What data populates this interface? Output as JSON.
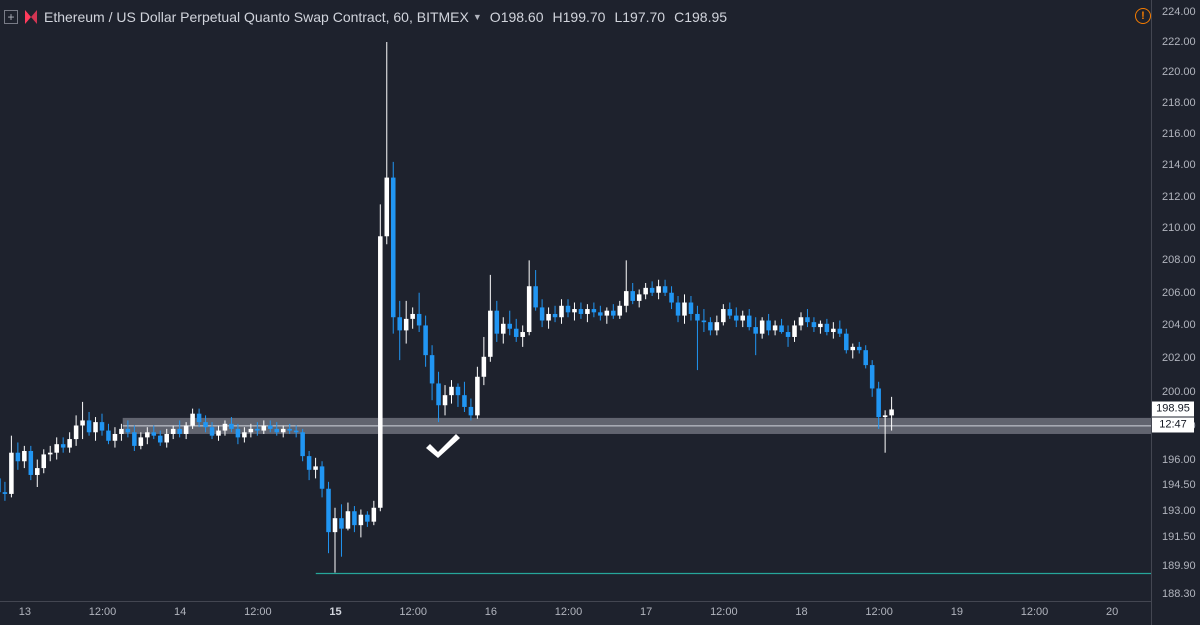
{
  "legend": {
    "symbol": "Ethereum / US Dollar Perpetual Quanto Swap Contract, 60, BITMEX",
    "add_icon": "plus-square-icon",
    "logo_icon": "bitmex-logo-icon",
    "open_key": "O",
    "open": "198.60",
    "high_key": "H",
    "high": "199.70",
    "low_key": "L",
    "low": "197.70",
    "close_key": "C",
    "close": "198.95"
  },
  "alert_icon": "!",
  "last_price": "198.95",
  "countdown": "12:47",
  "checkmark": "check-icon",
  "colors": {
    "background": "#1e222d",
    "up": "#ffffff",
    "down": "#2196f3",
    "support_zone": "#787b86",
    "low_line": "#26a69a",
    "alert": "#f57c00"
  },
  "chart_data": {
    "type": "candlestick",
    "title": "",
    "xlabel": "",
    "ylabel": "",
    "y_scale": "log",
    "ylim": [
      187.9,
      224.8
    ],
    "y_ticks": [
      "224.00",
      "222.00",
      "220.00",
      "218.00",
      "216.00",
      "214.00",
      "212.00",
      "210.00",
      "208.00",
      "206.00",
      "204.00",
      "202.00",
      "200.00",
      "198.00",
      "196.00",
      "194.50",
      "193.00",
      "191.50",
      "189.90",
      "188.30"
    ],
    "x_ticks": [
      {
        "label": "13",
        "day": 13.0,
        "bold": false
      },
      {
        "label": "12:00",
        "day": 13.5,
        "bold": false
      },
      {
        "label": "14",
        "day": 14.0,
        "bold": false
      },
      {
        "label": "12:00",
        "day": 14.5,
        "bold": false
      },
      {
        "label": "15",
        "day": 15.0,
        "bold": true
      },
      {
        "label": "12:00",
        "day": 15.5,
        "bold": false
      },
      {
        "label": "16",
        "day": 16.0,
        "bold": false
      },
      {
        "label": "12:00",
        "day": 16.5,
        "bold": false
      },
      {
        "label": "17",
        "day": 17.0,
        "bold": false
      },
      {
        "label": "12:00",
        "day": 17.5,
        "bold": false
      },
      {
        "label": "18",
        "day": 18.0,
        "bold": false
      },
      {
        "label": "12:00",
        "day": 18.5,
        "bold": false
      },
      {
        "label": "19",
        "day": 19.0,
        "bold": false
      },
      {
        "label": "12:00",
        "day": 19.5,
        "bold": false
      },
      {
        "label": "20",
        "day": 20.0,
        "bold": false
      }
    ],
    "xlim_days": [
      12.84,
      20.25
    ],
    "support_zone": [
      197.5,
      198.45
    ],
    "low_line": 189.45,
    "low_line_start_day": 14.873,
    "candles": [
      [
        195.0,
        195.3,
        193.6,
        194.2
      ],
      [
        194.2,
        196.0,
        193.8,
        195.6
      ],
      [
        195.6,
        195.9,
        194.8,
        195.2
      ],
      [
        195.2,
        195.6,
        193.7,
        194.3
      ],
      [
        194.3,
        194.6,
        192.0,
        193.2
      ],
      [
        193.2,
        195.4,
        193.0,
        194.9
      ],
      [
        194.9,
        195.1,
        193.9,
        194.1
      ],
      [
        194.1,
        194.7,
        193.6,
        194.0
      ],
      [
        194.0,
        197.4,
        193.8,
        196.4
      ],
      [
        196.4,
        197.0,
        195.4,
        195.9
      ],
      [
        195.9,
        196.8,
        195.5,
        196.5
      ],
      [
        196.5,
        196.8,
        194.8,
        195.1
      ],
      [
        195.1,
        196.0,
        194.4,
        195.5
      ],
      [
        195.5,
        196.6,
        195.2,
        196.3
      ],
      [
        196.3,
        196.8,
        195.9,
        196.4
      ],
      [
        196.4,
        197.3,
        196.0,
        196.9
      ],
      [
        196.9,
        197.3,
        196.4,
        196.7
      ],
      [
        196.7,
        197.6,
        196.4,
        197.2
      ],
      [
        197.2,
        198.6,
        196.8,
        198.0
      ],
      [
        198.0,
        199.4,
        197.2,
        198.3
      ],
      [
        198.3,
        198.8,
        197.4,
        197.6
      ],
      [
        197.6,
        198.5,
        197.1,
        198.2
      ],
      [
        198.2,
        198.7,
        197.4,
        197.7
      ],
      [
        197.7,
        198.1,
        196.9,
        197.1
      ],
      [
        197.1,
        197.9,
        196.7,
        197.5
      ],
      [
        197.5,
        198.1,
        197.1,
        197.8
      ],
      [
        197.8,
        198.3,
        197.3,
        197.6
      ],
      [
        197.6,
        198.0,
        196.5,
        196.8
      ],
      [
        196.8,
        197.6,
        196.6,
        197.3
      ],
      [
        197.3,
        197.9,
        196.9,
        197.6
      ],
      [
        197.6,
        198.0,
        197.2,
        197.4
      ],
      [
        197.4,
        197.7,
        196.8,
        197.0
      ],
      [
        197.0,
        197.8,
        196.7,
        197.5
      ],
      [
        197.5,
        198.0,
        197.2,
        197.8
      ],
      [
        197.8,
        198.3,
        197.3,
        197.5
      ],
      [
        197.5,
        198.2,
        197.2,
        198.0
      ],
      [
        198.0,
        199.0,
        197.8,
        198.7
      ],
      [
        198.7,
        199.0,
        197.9,
        198.2
      ],
      [
        198.2,
        198.6,
        197.6,
        197.9
      ],
      [
        197.9,
        198.2,
        197.2,
        197.4
      ],
      [
        197.4,
        198.0,
        197.1,
        197.7
      ],
      [
        197.7,
        198.3,
        197.4,
        198.1
      ],
      [
        198.1,
        198.5,
        197.6,
        197.8
      ],
      [
        197.8,
        198.1,
        196.9,
        197.3
      ],
      [
        197.3,
        197.9,
        197.0,
        197.6
      ],
      [
        197.6,
        198.1,
        197.3,
        197.8
      ],
      [
        197.8,
        198.2,
        197.4,
        197.7
      ],
      [
        197.7,
        198.3,
        197.5,
        198.0
      ],
      [
        198.0,
        198.3,
        197.6,
        197.8
      ],
      [
        197.8,
        198.2,
        197.4,
        197.6
      ],
      [
        197.6,
        198.0,
        197.3,
        197.8
      ],
      [
        197.8,
        198.1,
        197.5,
        197.7
      ],
      [
        197.7,
        198.0,
        197.3,
        197.6
      ],
      [
        197.6,
        197.8,
        195.9,
        196.2
      ],
      [
        196.2,
        196.5,
        194.8,
        195.4
      ],
      [
        195.4,
        196.1,
        194.9,
        195.6
      ],
      [
        195.6,
        195.9,
        193.8,
        194.3
      ],
      [
        194.3,
        194.7,
        190.6,
        191.8
      ],
      [
        191.8,
        193.2,
        189.5,
        192.6
      ],
      [
        192.6,
        193.4,
        190.4,
        192.0
      ],
      [
        192.0,
        193.5,
        191.9,
        193.0
      ],
      [
        193.0,
        193.3,
        191.8,
        192.2
      ],
      [
        192.2,
        193.1,
        191.5,
        192.8
      ],
      [
        192.8,
        193.0,
        192.1,
        192.4
      ],
      [
        192.4,
        193.6,
        192.2,
        193.2
      ],
      [
        193.2,
        211.5,
        193.0,
        209.5
      ],
      [
        209.5,
        222.0,
        209.0,
        213.2
      ],
      [
        213.2,
        214.2,
        203.5,
        204.5
      ],
      [
        204.5,
        205.5,
        201.9,
        203.7
      ],
      [
        203.7,
        205.5,
        202.9,
        204.4
      ],
      [
        204.4,
        205.1,
        203.8,
        204.7
      ],
      [
        204.7,
        206.0,
        203.6,
        204.0
      ],
      [
        204.0,
        204.6,
        201.5,
        202.2
      ],
      [
        202.2,
        202.8,
        199.5,
        200.5
      ],
      [
        200.5,
        201.2,
        198.2,
        199.2
      ],
      [
        199.2,
        200.4,
        198.6,
        199.8
      ],
      [
        199.8,
        200.7,
        199.3,
        200.3
      ],
      [
        200.3,
        200.5,
        199.1,
        199.8
      ],
      [
        199.8,
        200.6,
        198.8,
        199.1
      ],
      [
        199.1,
        199.6,
        198.3,
        198.6
      ],
      [
        198.6,
        201.5,
        198.4,
        200.9
      ],
      [
        200.9,
        203.3,
        200.4,
        202.1
      ],
      [
        202.1,
        207.1,
        201.8,
        204.9
      ],
      [
        204.9,
        205.5,
        203.0,
        203.5
      ],
      [
        203.5,
        204.5,
        202.9,
        204.1
      ],
      [
        204.1,
        204.9,
        203.4,
        203.8
      ],
      [
        203.8,
        204.4,
        203.0,
        203.3
      ],
      [
        203.3,
        204.0,
        202.7,
        203.6
      ],
      [
        203.6,
        208.0,
        203.4,
        206.4
      ],
      [
        206.4,
        207.4,
        204.9,
        205.1
      ],
      [
        205.1,
        205.6,
        203.9,
        204.3
      ],
      [
        204.3,
        205.1,
        203.8,
        204.7
      ],
      [
        204.7,
        205.2,
        204.2,
        204.5
      ],
      [
        204.5,
        205.6,
        204.1,
        205.2
      ],
      [
        205.2,
        205.6,
        204.5,
        204.8
      ],
      [
        204.8,
        205.4,
        204.3,
        205.0
      ],
      [
        205.0,
        205.4,
        204.4,
        204.7
      ],
      [
        204.7,
        205.3,
        204.2,
        205.0
      ],
      [
        205.0,
        205.4,
        204.5,
        204.8
      ],
      [
        204.8,
        205.2,
        204.3,
        204.6
      ],
      [
        204.6,
        205.1,
        204.1,
        204.9
      ],
      [
        204.9,
        205.3,
        204.4,
        204.6
      ],
      [
        204.6,
        205.5,
        204.4,
        205.2
      ],
      [
        205.2,
        208.0,
        204.8,
        206.1
      ],
      [
        206.1,
        206.6,
        205.3,
        205.5
      ],
      [
        205.5,
        206.2,
        205.1,
        205.9
      ],
      [
        205.9,
        206.6,
        205.6,
        206.3
      ],
      [
        206.3,
        206.7,
        205.8,
        206.0
      ],
      [
        206.0,
        206.8,
        205.6,
        206.4
      ],
      [
        206.4,
        206.8,
        205.8,
        206.0
      ],
      [
        206.0,
        206.4,
        205.0,
        205.4
      ],
      [
        205.4,
        205.8,
        204.2,
        204.6
      ],
      [
        204.6,
        205.9,
        204.1,
        205.4
      ],
      [
        205.4,
        205.8,
        204.3,
        204.7
      ],
      [
        204.7,
        205.2,
        201.3,
        204.3
      ],
      [
        204.3,
        205.0,
        203.6,
        204.2
      ],
      [
        204.2,
        204.5,
        203.4,
        203.7
      ],
      [
        203.7,
        204.6,
        203.4,
        204.2
      ],
      [
        204.2,
        205.3,
        204.0,
        205.0
      ],
      [
        205.0,
        205.4,
        204.4,
        204.6
      ],
      [
        204.6,
        205.1,
        203.9,
        204.3
      ],
      [
        204.3,
        204.9,
        203.9,
        204.6
      ],
      [
        204.6,
        205.0,
        203.7,
        203.9
      ],
      [
        203.9,
        204.5,
        202.2,
        203.5
      ],
      [
        203.5,
        204.5,
        203.2,
        204.3
      ],
      [
        204.3,
        204.7,
        203.4,
        203.7
      ],
      [
        203.7,
        204.3,
        203.4,
        204.0
      ],
      [
        204.0,
        204.4,
        203.5,
        203.6
      ],
      [
        203.6,
        204.0,
        202.7,
        203.3
      ],
      [
        203.3,
        204.3,
        203.0,
        204.0
      ],
      [
        204.0,
        204.8,
        203.7,
        204.5
      ],
      [
        204.5,
        205.0,
        203.9,
        204.2
      ],
      [
        204.2,
        204.5,
        203.6,
        203.9
      ],
      [
        203.9,
        204.3,
        203.5,
        204.1
      ],
      [
        204.1,
        204.4,
        203.4,
        203.6
      ],
      [
        203.6,
        204.2,
        203.2,
        203.8
      ],
      [
        203.8,
        204.3,
        203.3,
        203.5
      ],
      [
        203.5,
        203.8,
        202.3,
        202.5
      ],
      [
        202.5,
        202.9,
        202.0,
        202.7
      ],
      [
        202.7,
        203.0,
        202.3,
        202.5
      ],
      [
        202.5,
        202.8,
        201.4,
        201.6
      ],
      [
        201.6,
        201.9,
        199.7,
        200.2
      ],
      [
        200.2,
        200.6,
        197.8,
        198.5
      ],
      [
        198.5,
        198.9,
        196.4,
        198.6
      ],
      [
        198.6,
        199.7,
        197.7,
        198.95
      ]
    ]
  }
}
